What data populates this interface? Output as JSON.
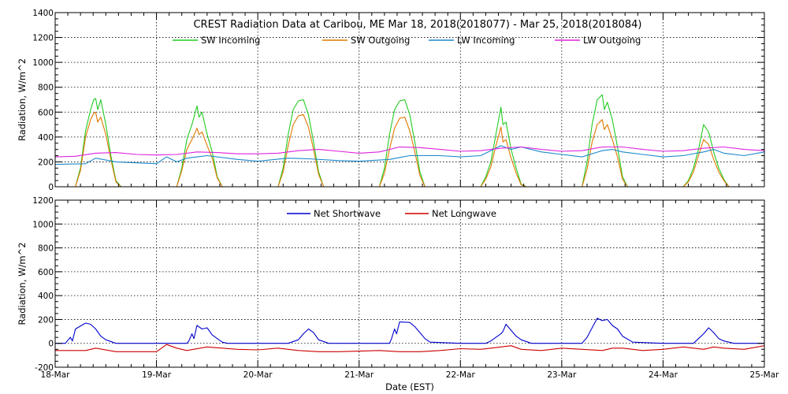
{
  "chart_data": [
    {
      "type": "line",
      "title": "CREST Radiation Data at Caribou, ME   Mar 18, 2018(2018077) - Mar 25, 2018(2018084)",
      "ylabel": "Radiation, W/m^2",
      "xlabel": "",
      "xlim": [
        0,
        7
      ],
      "ylim": [
        0,
        1400
      ],
      "yticks": [
        0,
        200,
        400,
        600,
        800,
        1000,
        1200,
        1400
      ],
      "grid": true,
      "legend": "top-center",
      "x_unit": "days since 18-Mar 00:00 EST",
      "series": [
        {
          "name": "SW Incoming",
          "color": "#22cc22",
          "x": [
            0,
            0.1,
            0.15,
            0.2,
            0.25,
            0.3,
            0.35,
            0.38,
            0.4,
            0.42,
            0.45,
            0.5,
            0.55,
            0.6,
            0.65,
            0.7,
            0.72,
            1.0,
            1.1,
            1.2,
            1.25,
            1.3,
            1.35,
            1.4,
            1.42,
            1.45,
            1.5,
            1.55,
            1.6,
            1.65,
            1.7,
            1.72,
            2.0,
            2.1,
            2.2,
            2.25,
            2.3,
            2.35,
            2.4,
            2.45,
            2.5,
            2.55,
            2.6,
            2.65,
            2.7,
            2.72,
            3.0,
            3.1,
            3.2,
            3.25,
            3.3,
            3.35,
            3.4,
            3.45,
            3.5,
            3.55,
            3.6,
            3.65,
            3.7,
            3.72,
            4.0,
            4.1,
            4.2,
            4.25,
            4.3,
            4.35,
            4.4,
            4.42,
            4.45,
            4.5,
            4.55,
            4.6,
            4.65,
            4.7,
            4.72,
            5.0,
            5.1,
            5.2,
            5.25,
            5.3,
            5.35,
            5.4,
            5.42,
            5.45,
            5.5,
            5.55,
            5.6,
            5.65,
            5.7,
            5.72,
            6.0,
            6.1,
            6.2,
            6.25,
            6.3,
            6.35,
            6.4,
            6.45,
            6.5,
            6.55,
            6.6,
            6.65,
            6.7,
            6.72,
            7.0
          ],
          "y": [
            0,
            0,
            0,
            0,
            150,
            450,
            620,
            700,
            710,
            620,
            700,
            500,
            250,
            50,
            0,
            0,
            0,
            0,
            0,
            0,
            150,
            380,
            500,
            650,
            560,
            600,
            420,
            280,
            80,
            0,
            0,
            0,
            0,
            0,
            0,
            150,
            420,
            620,
            690,
            700,
            580,
            360,
            120,
            0,
            0,
            0,
            0,
            0,
            0,
            150,
            420,
            620,
            690,
            700,
            580,
            360,
            120,
            0,
            0,
            0,
            0,
            0,
            0,
            80,
            200,
            420,
            640,
            500,
            520,
            300,
            150,
            20,
            0,
            0,
            0,
            0,
            0,
            0,
            200,
            500,
            700,
            740,
            620,
            680,
            540,
            320,
            80,
            0,
            0,
            0,
            0,
            0,
            0,
            50,
            150,
            300,
            500,
            440,
            280,
            150,
            60,
            0,
            0,
            0,
            0
          ]
        },
        {
          "name": "SW Outgoing",
          "color": "#e07800",
          "x": [
            0,
            0.1,
            0.15,
            0.2,
            0.25,
            0.3,
            0.35,
            0.38,
            0.4,
            0.42,
            0.45,
            0.5,
            0.55,
            0.6,
            0.65,
            0.7,
            0.72,
            1.0,
            1.1,
            1.2,
            1.25,
            1.3,
            1.35,
            1.4,
            1.42,
            1.45,
            1.5,
            1.55,
            1.6,
            1.65,
            1.7,
            1.72,
            2.0,
            2.1,
            2.2,
            2.25,
            2.3,
            2.35,
            2.4,
            2.45,
            2.5,
            2.55,
            2.6,
            2.65,
            2.7,
            2.72,
            3.0,
            3.1,
            3.2,
            3.25,
            3.3,
            3.35,
            3.4,
            3.45,
            3.5,
            3.55,
            3.6,
            3.65,
            3.7,
            3.72,
            4.0,
            4.1,
            4.2,
            4.25,
            4.3,
            4.35,
            4.4,
            4.42,
            4.45,
            4.5,
            4.55,
            4.6,
            4.65,
            4.7,
            4.72,
            5.0,
            5.1,
            5.2,
            5.25,
            5.3,
            5.35,
            5.4,
            5.42,
            5.45,
            5.5,
            5.55,
            5.6,
            5.65,
            5.7,
            5.72,
            6.0,
            6.1,
            6.2,
            6.25,
            6.3,
            6.35,
            6.4,
            6.45,
            6.5,
            6.55,
            6.6,
            6.65,
            6.7,
            6.72,
            7.0
          ],
          "y": [
            0,
            0,
            0,
            0,
            130,
            400,
            540,
            590,
            600,
            520,
            560,
            420,
            220,
            40,
            0,
            0,
            0,
            0,
            0,
            0,
            130,
            300,
            380,
            470,
            420,
            440,
            330,
            230,
            70,
            0,
            0,
            0,
            0,
            0,
            0,
            120,
            330,
            500,
            570,
            580,
            480,
            300,
            100,
            0,
            0,
            0,
            0,
            0,
            0,
            110,
            300,
            470,
            550,
            560,
            450,
            280,
            90,
            0,
            0,
            0,
            0,
            0,
            0,
            60,
            160,
            330,
            480,
            360,
            380,
            230,
            110,
            15,
            0,
            0,
            0,
            0,
            0,
            0,
            140,
            360,
            500,
            540,
            460,
            500,
            380,
            240,
            60,
            0,
            0,
            0,
            0,
            0,
            0,
            40,
            120,
            250,
            380,
            340,
            220,
            120,
            50,
            0,
            0,
            0,
            0
          ]
        },
        {
          "name": "LW Incoming",
          "color": "#1a88cc",
          "x": [
            0,
            0.3,
            0.4,
            0.6,
            1.0,
            1.1,
            1.2,
            1.3,
            1.5,
            1.8,
            2.0,
            2.3,
            2.5,
            2.8,
            3.0,
            3.3,
            3.5,
            3.8,
            4.0,
            4.2,
            4.4,
            4.5,
            4.6,
            4.8,
            5.0,
            5.2,
            5.4,
            5.5,
            5.6,
            5.8,
            6.0,
            6.2,
            6.4,
            6.5,
            6.6,
            6.8,
            7.0
          ],
          "y": [
            180,
            185,
            230,
            200,
            185,
            240,
            200,
            230,
            250,
            220,
            205,
            230,
            225,
            210,
            205,
            220,
            250,
            250,
            240,
            250,
            330,
            300,
            320,
            280,
            260,
            240,
            290,
            300,
            280,
            260,
            240,
            250,
            280,
            300,
            270,
            250,
            280
          ]
        },
        {
          "name": "LW Outgoing",
          "color": "#dd22dd",
          "x": [
            0,
            0.2,
            0.4,
            0.6,
            0.8,
            1.0,
            1.2,
            1.4,
            1.6,
            1.8,
            2.0,
            2.2,
            2.4,
            2.6,
            2.8,
            3.0,
            3.2,
            3.4,
            3.6,
            3.8,
            4.0,
            4.2,
            4.4,
            4.6,
            4.8,
            5.0,
            5.2,
            5.4,
            5.6,
            5.8,
            6.0,
            6.2,
            6.4,
            6.6,
            6.8,
            7.0
          ],
          "y": [
            240,
            245,
            270,
            275,
            260,
            255,
            260,
            280,
            275,
            265,
            265,
            270,
            290,
            300,
            285,
            270,
            280,
            320,
            315,
            300,
            285,
            290,
            310,
            320,
            300,
            285,
            290,
            320,
            320,
            300,
            285,
            290,
            310,
            320,
            300,
            290
          ]
        }
      ]
    },
    {
      "type": "line",
      "title": "",
      "ylabel": "Radiation, W/m^2",
      "xlabel": "Date (EST)",
      "xlim": [
        0,
        7
      ],
      "ylim": [
        -200,
        1200
      ],
      "yticks": [
        -200,
        0,
        200,
        400,
        600,
        800,
        1000,
        1200
      ],
      "categories": [
        "18-Mar",
        "19-Mar",
        "20-Mar",
        "21-Mar",
        "22-Mar",
        "23-Mar",
        "24-Mar",
        "25-Mar"
      ],
      "grid": true,
      "legend": "top-center",
      "series": [
        {
          "name": "Net Shortwave",
          "color": "#0000cc",
          "x": [
            0,
            0.1,
            0.12,
            0.15,
            0.17,
            0.2,
            0.3,
            0.35,
            0.4,
            0.45,
            0.5,
            0.6,
            0.7,
            1.0,
            1.3,
            1.32,
            1.35,
            1.37,
            1.4,
            1.45,
            1.5,
            1.55,
            1.6,
            1.65,
            1.7,
            2.0,
            2.3,
            2.4,
            2.45,
            2.5,
            2.55,
            2.6,
            2.7,
            3.0,
            3.3,
            3.32,
            3.35,
            3.37,
            3.4,
            3.5,
            3.55,
            3.6,
            3.65,
            3.7,
            4.0,
            4.25,
            4.3,
            4.35,
            4.4,
            4.42,
            4.45,
            4.5,
            4.55,
            4.6,
            4.7,
            5.0,
            5.2,
            5.25,
            5.3,
            5.35,
            5.4,
            5.45,
            5.5,
            5.55,
            5.6,
            5.7,
            6.0,
            6.3,
            6.35,
            6.4,
            6.45,
            6.5,
            6.55,
            6.6,
            6.7,
            7.0
          ],
          "y": [
            0,
            0,
            20,
            50,
            20,
            120,
            170,
            160,
            120,
            60,
            30,
            0,
            0,
            0,
            0,
            20,
            80,
            40,
            150,
            120,
            130,
            70,
            40,
            10,
            0,
            0,
            0,
            30,
            80,
            120,
            90,
            30,
            0,
            0,
            0,
            40,
            120,
            80,
            180,
            175,
            140,
            90,
            40,
            10,
            0,
            0,
            20,
            50,
            80,
            100,
            160,
            110,
            60,
            30,
            0,
            0,
            0,
            50,
            130,
            210,
            190,
            200,
            150,
            120,
            60,
            10,
            0,
            0,
            40,
            80,
            130,
            90,
            40,
            20,
            0,
            0
          ]
        },
        {
          "name": "Net Longwave",
          "color": "#cc0000",
          "x": [
            0,
            0.3,
            0.4,
            0.6,
            0.8,
            1.0,
            1.1,
            1.2,
            1.3,
            1.5,
            1.8,
            2.0,
            2.2,
            2.4,
            2.6,
            2.8,
            3.0,
            3.2,
            3.4,
            3.6,
            3.8,
            4.0,
            4.2,
            4.4,
            4.5,
            4.6,
            4.8,
            5.0,
            5.2,
            5.4,
            5.5,
            5.6,
            5.8,
            6.0,
            6.2,
            6.4,
            6.5,
            6.6,
            6.8,
            7.0
          ],
          "y": [
            -60,
            -60,
            -40,
            -70,
            -70,
            -70,
            -10,
            -40,
            -60,
            -30,
            -50,
            -55,
            -40,
            -60,
            -70,
            -70,
            -65,
            -60,
            -70,
            -70,
            -60,
            -45,
            -50,
            -30,
            -20,
            -50,
            -60,
            -40,
            -50,
            -60,
            -40,
            -40,
            -60,
            -50,
            -30,
            -50,
            -30,
            -40,
            -50,
            -20
          ]
        }
      ]
    }
  ]
}
